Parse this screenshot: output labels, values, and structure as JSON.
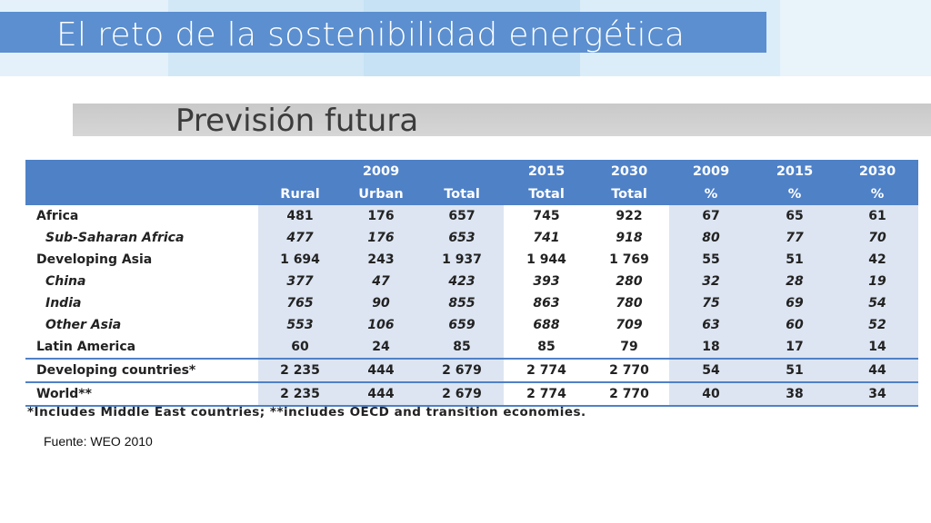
{
  "title": "El reto de la sostenibilidad energética",
  "subtitle": "Previsión futura",
  "table": {
    "header_row1": [
      "",
      "",
      "2009",
      "",
      "2015",
      "2030",
      "2009",
      "2015",
      "2030"
    ],
    "header_row2": [
      "",
      "Rural",
      "Urban",
      "Total",
      "Total",
      "Total",
      "%",
      "%",
      "%"
    ],
    "rows": [
      {
        "label": "Africa",
        "values": [
          "481",
          "176",
          "657",
          "745",
          "922",
          "67",
          "65",
          "61"
        ]
      },
      {
        "label": "Sub-Saharan Africa",
        "values": [
          "477",
          "176",
          "653",
          "741",
          "918",
          "80",
          "77",
          "70"
        ]
      },
      {
        "label": "Developing Asia",
        "values": [
          "1 694",
          "243",
          "1 937",
          "1 944",
          "1 769",
          "55",
          "51",
          "42"
        ]
      },
      {
        "label": "China",
        "values": [
          "377",
          "47",
          "423",
          "393",
          "280",
          "32",
          "28",
          "19"
        ]
      },
      {
        "label": "India",
        "values": [
          "765",
          "90",
          "855",
          "863",
          "780",
          "75",
          "69",
          "54"
        ]
      },
      {
        "label": "Other Asia",
        "values": [
          "553",
          "106",
          "659",
          "688",
          "709",
          "63",
          "60",
          "52"
        ]
      },
      {
        "label": "Latin America",
        "values": [
          "60",
          "24",
          "85",
          "85",
          "79",
          "18",
          "17",
          "14"
        ]
      },
      {
        "label": "Developing countries*",
        "values": [
          "2 235",
          "444",
          "2 679",
          "2 774",
          "2 770",
          "54",
          "51",
          "44"
        ]
      },
      {
        "label": "World**",
        "values": [
          "2 235",
          "444",
          "2 679",
          "2 774",
          "2 770",
          "40",
          "38",
          "34"
        ]
      }
    ],
    "footnote": "*Includes Middle East countries; **includes OECD and transition economies."
  },
  "source": "Fuente: WEO 2010",
  "colors": {
    "title_bar": "#5b8fd0",
    "table_header": "#4f81c7",
    "table_band": "#dde5f2",
    "subtitle_bar": "#cccccc"
  }
}
